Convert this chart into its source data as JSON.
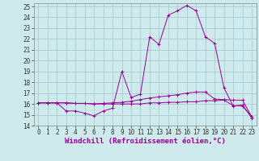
{
  "xlabel": "Windchill (Refroidissement éolien,°C)",
  "background_color": "#ceeaec",
  "grid_color": "#aacdd1",
  "line_color": "#990099",
  "xlim": [
    -0.5,
    23.5
  ],
  "ylim": [
    14,
    25.3
  ],
  "yticks": [
    14,
    15,
    16,
    17,
    18,
    19,
    20,
    21,
    22,
    23,
    24,
    25
  ],
  "xticks": [
    0,
    1,
    2,
    3,
    4,
    5,
    6,
    7,
    8,
    9,
    10,
    11,
    12,
    13,
    14,
    15,
    16,
    17,
    18,
    19,
    20,
    21,
    22,
    23
  ],
  "series1_x": [
    0,
    1,
    2,
    3,
    4,
    5,
    6,
    7,
    8,
    9,
    10,
    11,
    12,
    13,
    14,
    15,
    16,
    17,
    18,
    19,
    20,
    21,
    22,
    23
  ],
  "series1_y": [
    16.1,
    16.1,
    16.1,
    15.35,
    15.35,
    15.15,
    14.9,
    15.35,
    15.6,
    19.0,
    16.6,
    16.9,
    22.2,
    21.5,
    24.2,
    24.6,
    25.1,
    24.6,
    22.2,
    21.6,
    17.5,
    15.8,
    15.9,
    14.7
  ],
  "series2_x": [
    0,
    1,
    2,
    3,
    4,
    5,
    6,
    7,
    8,
    9,
    10,
    11,
    12,
    13,
    14,
    15,
    16,
    17,
    18,
    19,
    20,
    21,
    22,
    23
  ],
  "series2_y": [
    16.1,
    16.1,
    16.1,
    16.1,
    16.05,
    16.05,
    16.0,
    16.05,
    16.1,
    16.15,
    16.25,
    16.4,
    16.55,
    16.65,
    16.75,
    16.85,
    17.0,
    17.1,
    17.1,
    16.45,
    16.4,
    16.35,
    16.35,
    14.8
  ],
  "series3_x": [
    0,
    1,
    2,
    3,
    4,
    5,
    6,
    7,
    8,
    9,
    10,
    11,
    12,
    13,
    14,
    15,
    16,
    17,
    18,
    19,
    20,
    21,
    22,
    23
  ],
  "series3_y": [
    16.1,
    16.1,
    16.1,
    16.1,
    16.05,
    16.05,
    16.0,
    16.0,
    16.0,
    16.0,
    16.0,
    16.0,
    16.1,
    16.1,
    16.15,
    16.15,
    16.2,
    16.2,
    16.3,
    16.3,
    16.35,
    15.85,
    15.8,
    14.85
  ],
  "xlabel_fontsize": 6.5,
  "tick_fontsize": 5.5
}
